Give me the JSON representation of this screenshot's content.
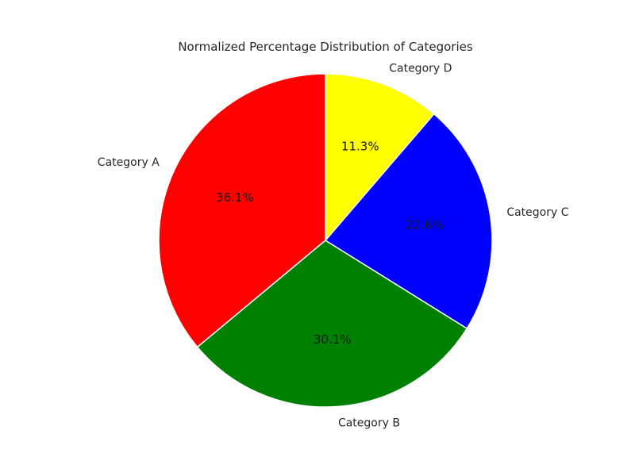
{
  "chart_data": {
    "type": "pie",
    "title": "Normalized Percentage Distribution of Categories",
    "categories": [
      "Category A",
      "Category B",
      "Category C",
      "Category D"
    ],
    "values": [
      36.1,
      30.1,
      22.6,
      11.3
    ],
    "percent_labels": [
      "36.1%",
      "30.1%",
      "22.6%",
      "11.3%"
    ],
    "colors": [
      "#ff0000",
      "#008000",
      "#0000ff",
      "#ffff00"
    ],
    "start_angle_deg": 90,
    "direction": "counterclockwise",
    "legend": "none"
  }
}
